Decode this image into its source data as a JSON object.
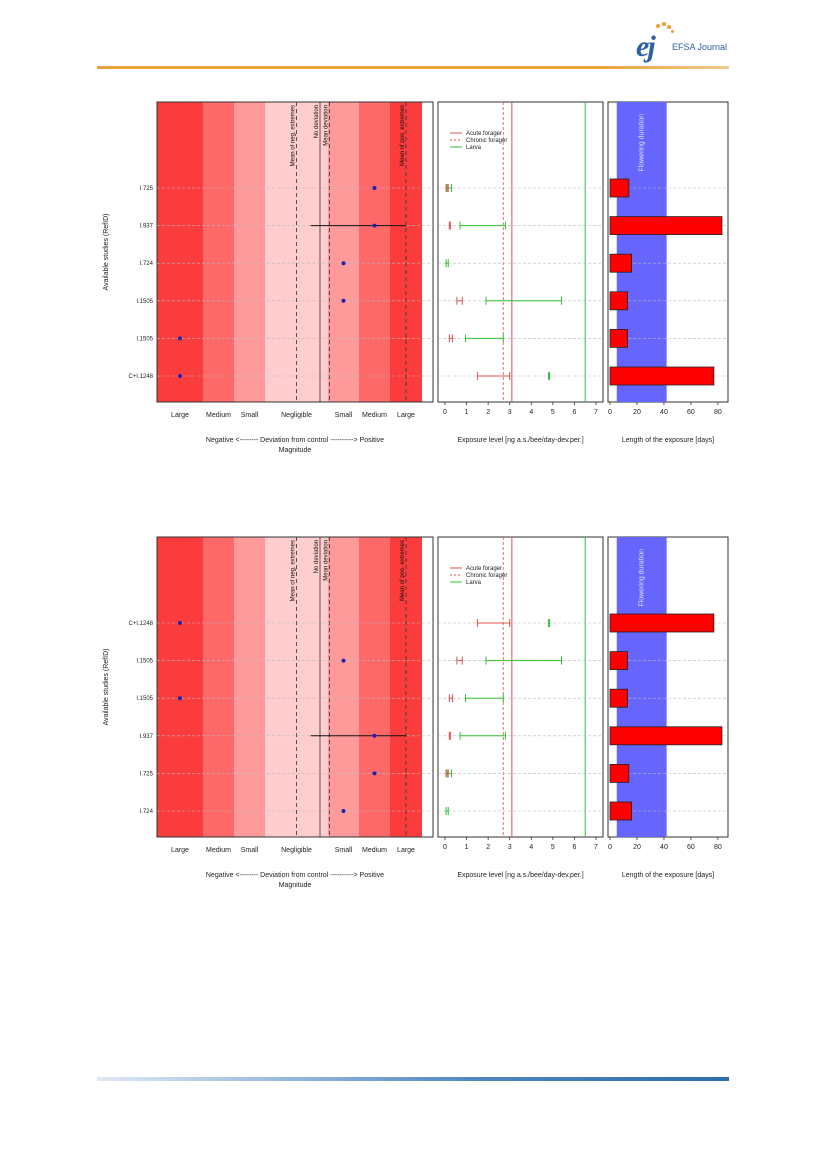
{
  "header": {
    "journal": "EFSA Journal",
    "logo_letters": "ej"
  },
  "colors": {
    "header_rule": "#e9a33c",
    "footer_rule": "#2f6cae",
    "acute": "#e05050",
    "larva": "#30c030",
    "flowering": "#6666ff",
    "bar": "#ff0000",
    "point": "#2020b0"
  },
  "figure_text": {
    "y_axis_title": "Available studies (RefID)",
    "magnitude_ticks": [
      "Large",
      "Medium",
      "Small",
      "Negligible",
      "Small",
      "Medium",
      "Large"
    ],
    "magnitude_axis_line1": "Negative  <--------  Deviation from control  ---------->  Positive",
    "magnitude_axis_line2": "Magnitude",
    "vline_labels": [
      "Mean of neg. extremes",
      "No deviation",
      "Mean deviation",
      "Mean of pos. extremes"
    ],
    "legend": [
      "Acute forager",
      "Chronic forager",
      "Larva"
    ],
    "exposure_xlabel": "Exposure level [ng a.s./bee/day-dev.per.]",
    "exposure_ticks": [
      "0",
      "1",
      "2",
      "3",
      "4",
      "5",
      "6",
      "7"
    ],
    "length_xlabel": "Length of the exposure [days]",
    "length_ticks": [
      "0",
      "20",
      "40",
      "60",
      "80"
    ],
    "flowering_label": "Flowering duration"
  },
  "chart_data": [
    {
      "type": "scatter",
      "panel": "top",
      "categories": [
        "I.725",
        "I.937",
        "I.724",
        "I.1505",
        "I.1505",
        "C+I.1248"
      ],
      "magnitude": [
        5,
        5,
        4,
        4,
        0,
        0
      ],
      "magnitude_range": [
        null,
        [
          3.3,
          6.5
        ],
        null,
        null,
        null,
        null
      ],
      "reference_lines": {
        "mean_neg_extremes": 3.0,
        "no_deviation": 3.5,
        "mean_deviation": 3.7,
        "mean_pos_extremes": 6.5
      },
      "exposure": {
        "xlim": [
          0,
          7
        ],
        "acute_forager_line": 3.1,
        "chronic_forager_line": 2.7,
        "larva_line": 6.5,
        "acute": [
          [
            0.05,
            0.15
          ],
          [
            0.2,
            0.25
          ],
          null,
          [
            0.55,
            0.8
          ],
          [
            0.2,
            0.35
          ],
          [
            1.5,
            3.0
          ]
        ],
        "larva": [
          [
            0.1,
            0.3
          ],
          [
            0.7,
            2.8
          ],
          [
            0.05,
            0.15
          ],
          [
            1.9,
            5.4
          ],
          [
            0.95,
            2.7
          ],
          [
            4.8,
            4.85
          ]
        ]
      },
      "length_days": [
        14,
        83,
        16,
        13,
        13,
        77
      ],
      "flowering_duration_days": [
        5,
        42
      ]
    },
    {
      "type": "scatter",
      "panel": "bottom",
      "categories": [
        "C+I.1248",
        "I.1505",
        "I.1505",
        "I.937",
        "I.725",
        "I.724"
      ],
      "magnitude": [
        0,
        4,
        0,
        5,
        5,
        4
      ],
      "magnitude_range": [
        null,
        null,
        null,
        [
          3.3,
          6.5
        ],
        null,
        null
      ],
      "reference_lines": {
        "mean_neg_extremes": 3.0,
        "no_deviation": 3.5,
        "mean_deviation": 3.7,
        "mean_pos_extremes": 6.5
      },
      "exposure": {
        "xlim": [
          0,
          7
        ],
        "acute_forager_line": 3.1,
        "chronic_forager_line": 2.7,
        "larva_line": 6.5,
        "acute": [
          [
            1.5,
            3.0
          ],
          [
            0.55,
            0.8
          ],
          [
            0.2,
            0.35
          ],
          [
            0.2,
            0.25
          ],
          [
            0.05,
            0.15
          ],
          null
        ],
        "larva": [
          [
            4.8,
            4.85
          ],
          [
            1.9,
            5.4
          ],
          [
            0.95,
            2.7
          ],
          [
            0.7,
            2.8
          ],
          [
            0.1,
            0.3
          ],
          [
            0.05,
            0.15
          ]
        ]
      },
      "length_days": [
        77,
        13,
        13,
        83,
        14,
        16
      ],
      "flowering_duration_days": [
        5,
        42
      ]
    }
  ]
}
